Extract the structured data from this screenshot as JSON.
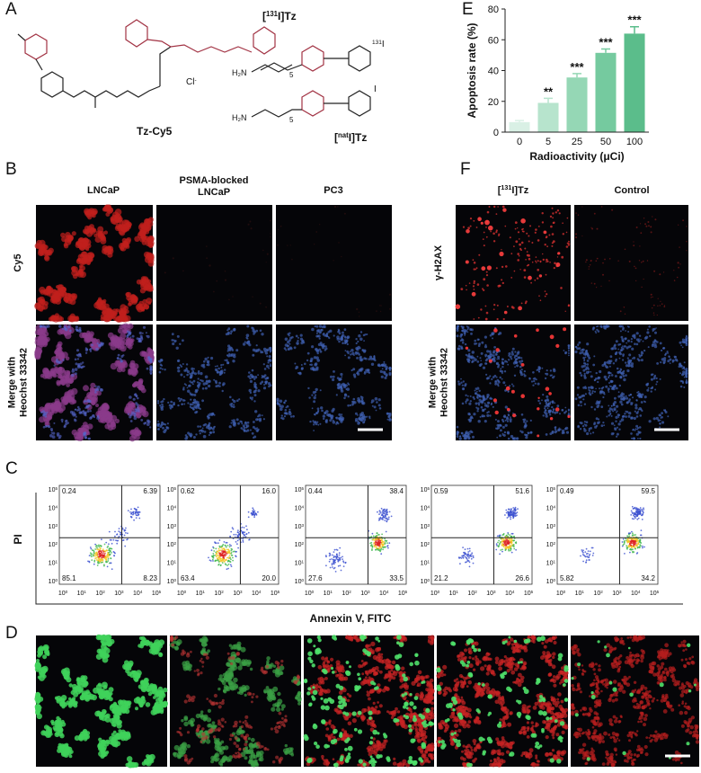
{
  "panel_labels": [
    "A",
    "E",
    "B",
    "F",
    "C",
    "D"
  ],
  "panel_a": {
    "compound_1": "Tz-Cy5",
    "counterion": {
      "base": "Cl",
      "sup": "-"
    },
    "compound_2": {
      "pre": "[",
      "sup": "131",
      "post": "I]Tz"
    },
    "compound_3": {
      "pre": "[",
      "sup": "nat",
      "post": "I]Tz"
    },
    "iodine_labeled": {
      "sup": "131",
      "post": "I"
    },
    "iodine_plain": "I",
    "amine": "H₂N",
    "repeat": "5"
  },
  "chart_data": {
    "type": "bar",
    "ylabel": "Apoptosis rate (%)",
    "xlabel": "Radioactivity (μCi)",
    "categories": [
      "0",
      "5",
      "25",
      "50",
      "100"
    ],
    "values": [
      6.5,
      19,
      35.5,
      51.5,
      64
    ],
    "errors": [
      1,
      3,
      2.5,
      2.5,
      4.5
    ],
    "annotations": [
      null,
      "**",
      "***",
      "***",
      "***"
    ],
    "colors": [
      "#d9f0e5",
      "#b7e4cd",
      "#95d7b5",
      "#75ca9f",
      "#5bbd8b"
    ],
    "ylim": [
      0,
      80
    ],
    "yticks": [
      0,
      20,
      40,
      60,
      80
    ]
  },
  "panel_b": {
    "columns": [
      [
        "LNCaP"
      ],
      [
        "PSMA-blocked",
        "LNCaP"
      ],
      [
        "PC3"
      ]
    ],
    "rows": [
      [
        "Cy5"
      ],
      [
        "Merge with",
        "Heochst 33342"
      ]
    ]
  },
  "panel_f": {
    "column_1": {
      "pre": "[",
      "sup": "131",
      "post": "I]Tz"
    },
    "column_2": "Control",
    "rows": [
      [
        "γ-H2AX"
      ],
      [
        "Merge with",
        "Heochst 33342"
      ]
    ]
  },
  "panel_c": {
    "ylabel": "PI",
    "xlabel": "Annexin V, FITC",
    "tick_base": "10",
    "tick_exponents": [
      "0",
      "1",
      "2",
      "3",
      "4",
      "5"
    ],
    "plots": [
      {
        "upper_left": "0.24",
        "upper_right": "6.39",
        "lower_left": "85.1",
        "lower_right": "8.23"
      },
      {
        "upper_left": "0.62",
        "upper_right": "16.0",
        "lower_left": "63.4",
        "lower_right": "20.0"
      },
      {
        "upper_left": "0.44",
        "upper_right": "38.4",
        "lower_left": "27.6",
        "lower_right": "33.5"
      },
      {
        "upper_left": "0.59",
        "upper_right": "51.6",
        "lower_left": "21.2",
        "lower_right": "26.6"
      },
      {
        "upper_left": "0.49",
        "upper_right": "59.5",
        "lower_left": "5.82",
        "lower_right": "34.2"
      }
    ]
  }
}
